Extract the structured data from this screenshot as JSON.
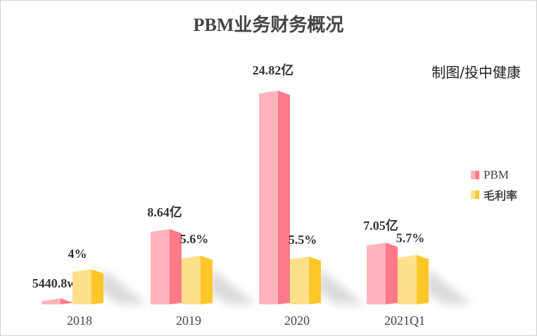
{
  "title": "PBM业务财务概况",
  "credit": "制图/投中健康",
  "colors": {
    "pbm_front": "#ffb3bd",
    "pbm_side": "#ff7a88",
    "margin_front": "#ffe08a",
    "margin_side": "#ffc629",
    "text": "#333333"
  },
  "chart_data": {
    "type": "bar",
    "title": "PBM业务财务概况",
    "categories": [
      "2018",
      "2019",
      "2020",
      "2021Q1"
    ],
    "series": [
      {
        "name": "PBM",
        "unit": "亿",
        "values": [
          0.54408,
          8.64,
          24.82,
          7.05
        ],
        "labels": [
          "5440.8w",
          "8.64亿",
          "24.82亿",
          "7.05亿"
        ]
      },
      {
        "name": "毛利率",
        "unit": "%",
        "values": [
          4,
          5.6,
          5.5,
          5.7
        ],
        "labels": [
          "4%",
          "5.6%",
          "5.5%",
          "5.7%"
        ]
      }
    ],
    "legend_position": "right",
    "grid": false,
    "style": "3d"
  }
}
